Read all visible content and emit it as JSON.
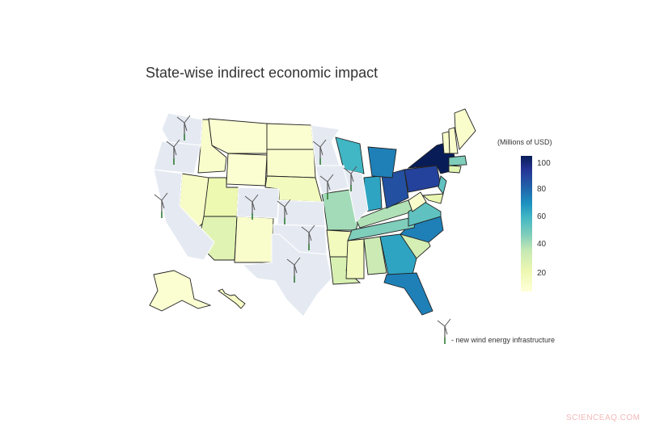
{
  "chart_data": {
    "type": "choropleth",
    "title": "State-wise indirect economic impact",
    "colorbar": {
      "title": "(Millions of USD)",
      "ticks": [
        20,
        40,
        60,
        80,
        100
      ],
      "range": [
        5,
        105
      ],
      "colorscale": "YlGnBu"
    },
    "no_data_color": "#e5eaf2",
    "states": {
      "MT": 8,
      "ID": 10,
      "WY": 8,
      "NV": 12,
      "UT": 20,
      "AZ": 25,
      "NM": 10,
      "ND": 8,
      "SD": 10,
      "NE": 15,
      "MO": 40,
      "AR": 15,
      "LA": 28,
      "MS": 15,
      "AL": 33,
      "GA": 60,
      "FL": 70,
      "SC": 30,
      "NC": 70,
      "TN": 45,
      "KY": 38,
      "VA": 50,
      "WV": 10,
      "OH": 85,
      "IN": 60,
      "MI": 70,
      "WI": 55,
      "PA": 90,
      "NY": 105,
      "NJ": 50,
      "MD": 22,
      "MA": 45,
      "CT": 25,
      "VT": 10,
      "NH": 10,
      "ME": 10,
      "AK": 8,
      "HI": 12,
      "WA": null,
      "OR": null,
      "CA": null,
      "CO": null,
      "KS": null,
      "OK": null,
      "TX": null,
      "MN": null,
      "IA": null,
      "IL": null
    },
    "wind_infrastructure_states": [
      "WA",
      "OR",
      "CA",
      "CO",
      "KS",
      "OK",
      "TX",
      "MN",
      "IA",
      "IL"
    ]
  },
  "legend": {
    "label": "- new wind energy infrastructure",
    "icon": "wind-turbine-icon"
  },
  "watermark": "SCIENCEAQ.COM"
}
